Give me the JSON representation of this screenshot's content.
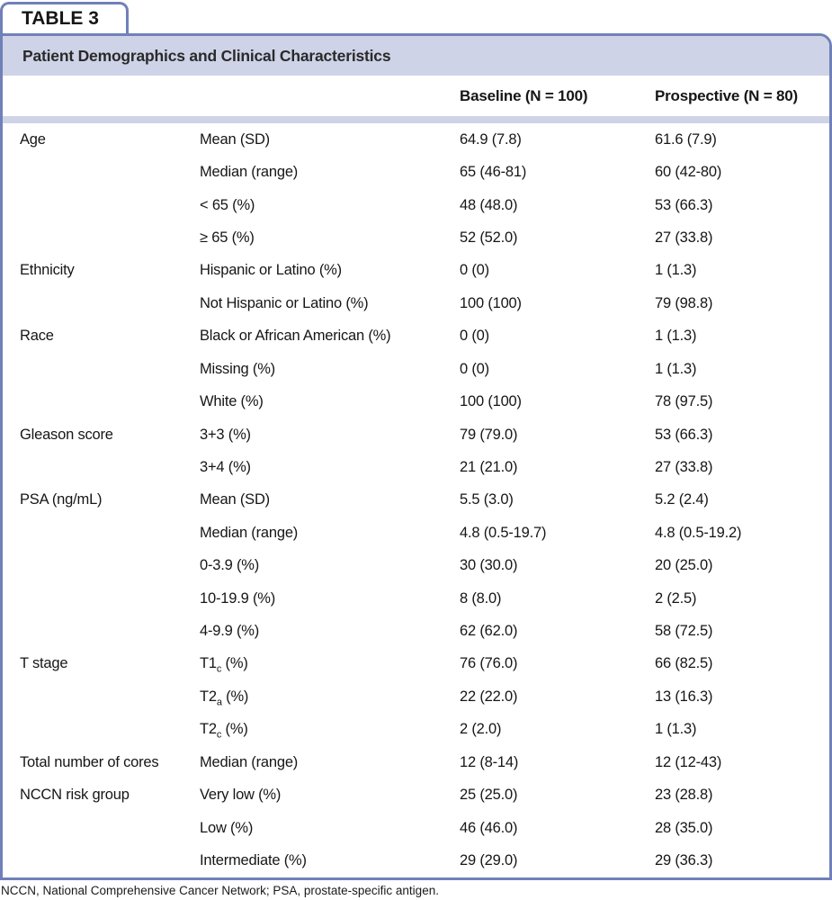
{
  "table_tag": "TABLE 3",
  "title": "Patient Demographics and Clinical Characteristics",
  "columns": [
    "Baseline (N = 100)",
    "Prospective (N = 80)"
  ],
  "footnote": "NCCN, National Comprehensive Cancer Network; PSA, prostate-specific antigen.",
  "colors": {
    "border": "#7081b9",
    "band": "#ced3e7"
  },
  "rows": [
    {
      "category": "Age",
      "label": "Mean (SD)",
      "baseline": "64.9 (7.8)",
      "prospective": "61.6 (7.9)"
    },
    {
      "category": "",
      "label": "Median (range)",
      "baseline": "65 (46-81)",
      "prospective": "60 (42-80)"
    },
    {
      "category": "",
      "label": "< 65 (%)",
      "baseline": "48 (48.0)",
      "prospective": "53 (66.3)"
    },
    {
      "category": "",
      "label": "≥ 65 (%)",
      "baseline": "52 (52.0)",
      "prospective": "27 (33.8)"
    },
    {
      "category": "Ethnicity",
      "label": "Hispanic or Latino (%)",
      "baseline": "0 (0)",
      "prospective": "1 (1.3)"
    },
    {
      "category": "",
      "label": "Not Hispanic or Latino (%)",
      "baseline": "100 (100)",
      "prospective": "79 (98.8)"
    },
    {
      "category": "Race",
      "label": "Black or African American (%)",
      "baseline": "0 (0)",
      "prospective": "1 (1.3)"
    },
    {
      "category": "",
      "label": "Missing (%)",
      "baseline": "0 (0)",
      "prospective": "1 (1.3)"
    },
    {
      "category": "",
      "label": "White (%)",
      "baseline": "100 (100)",
      "prospective": "78 (97.5)"
    },
    {
      "category": "Gleason score",
      "label": "3+3 (%)",
      "baseline": "79 (79.0)",
      "prospective": "53 (66.3)"
    },
    {
      "category": "",
      "label": "3+4 (%)",
      "baseline": "21 (21.0)",
      "prospective": "27 (33.8)"
    },
    {
      "category": "PSA (ng/mL)",
      "label": "Mean (SD)",
      "baseline": "5.5 (3.0)",
      "prospective": "5.2 (2.4)"
    },
    {
      "category": "",
      "label": "Median (range)",
      "baseline": "4.8 (0.5-19.7)",
      "prospective": "4.8 (0.5-19.2)"
    },
    {
      "category": "",
      "label": "0-3.9 (%)",
      "baseline": "30 (30.0)",
      "prospective": "20 (25.0)"
    },
    {
      "category": "",
      "label": "10-19.9 (%)",
      "baseline": "8 (8.0)",
      "prospective": "2 (2.5)"
    },
    {
      "category": "",
      "label": "4-9.9 (%)",
      "baseline": "62 (62.0)",
      "prospective": "58 (72.5)"
    },
    {
      "category": "T stage",
      "label": {
        "main": "T1",
        "sub": "c",
        "rest": " (%)"
      },
      "baseline": "76 (76.0)",
      "prospective": "66 (82.5)"
    },
    {
      "category": "",
      "label": {
        "main": "T2",
        "sub": "a",
        "rest": " (%)"
      },
      "baseline": "22 (22.0)",
      "prospective": "13 (16.3)"
    },
    {
      "category": "",
      "label": {
        "main": "T2",
        "sub": "c",
        "rest": " (%)"
      },
      "baseline": "2 (2.0)",
      "prospective": "1 (1.3)"
    },
    {
      "category": "Total number of cores",
      "label": "Median (range)",
      "baseline": "12 (8-14)",
      "prospective": "12 (12-43)"
    },
    {
      "category": "NCCN risk group",
      "label": "Very low (%)",
      "baseline": "25 (25.0)",
      "prospective": "23 (28.8)"
    },
    {
      "category": "",
      "label": "Low (%)",
      "baseline": "46 (46.0)",
      "prospective": "28 (35.0)"
    },
    {
      "category": "",
      "label": "Intermediate (%)",
      "baseline": "29 (29.0)",
      "prospective": "29 (36.3)"
    }
  ]
}
